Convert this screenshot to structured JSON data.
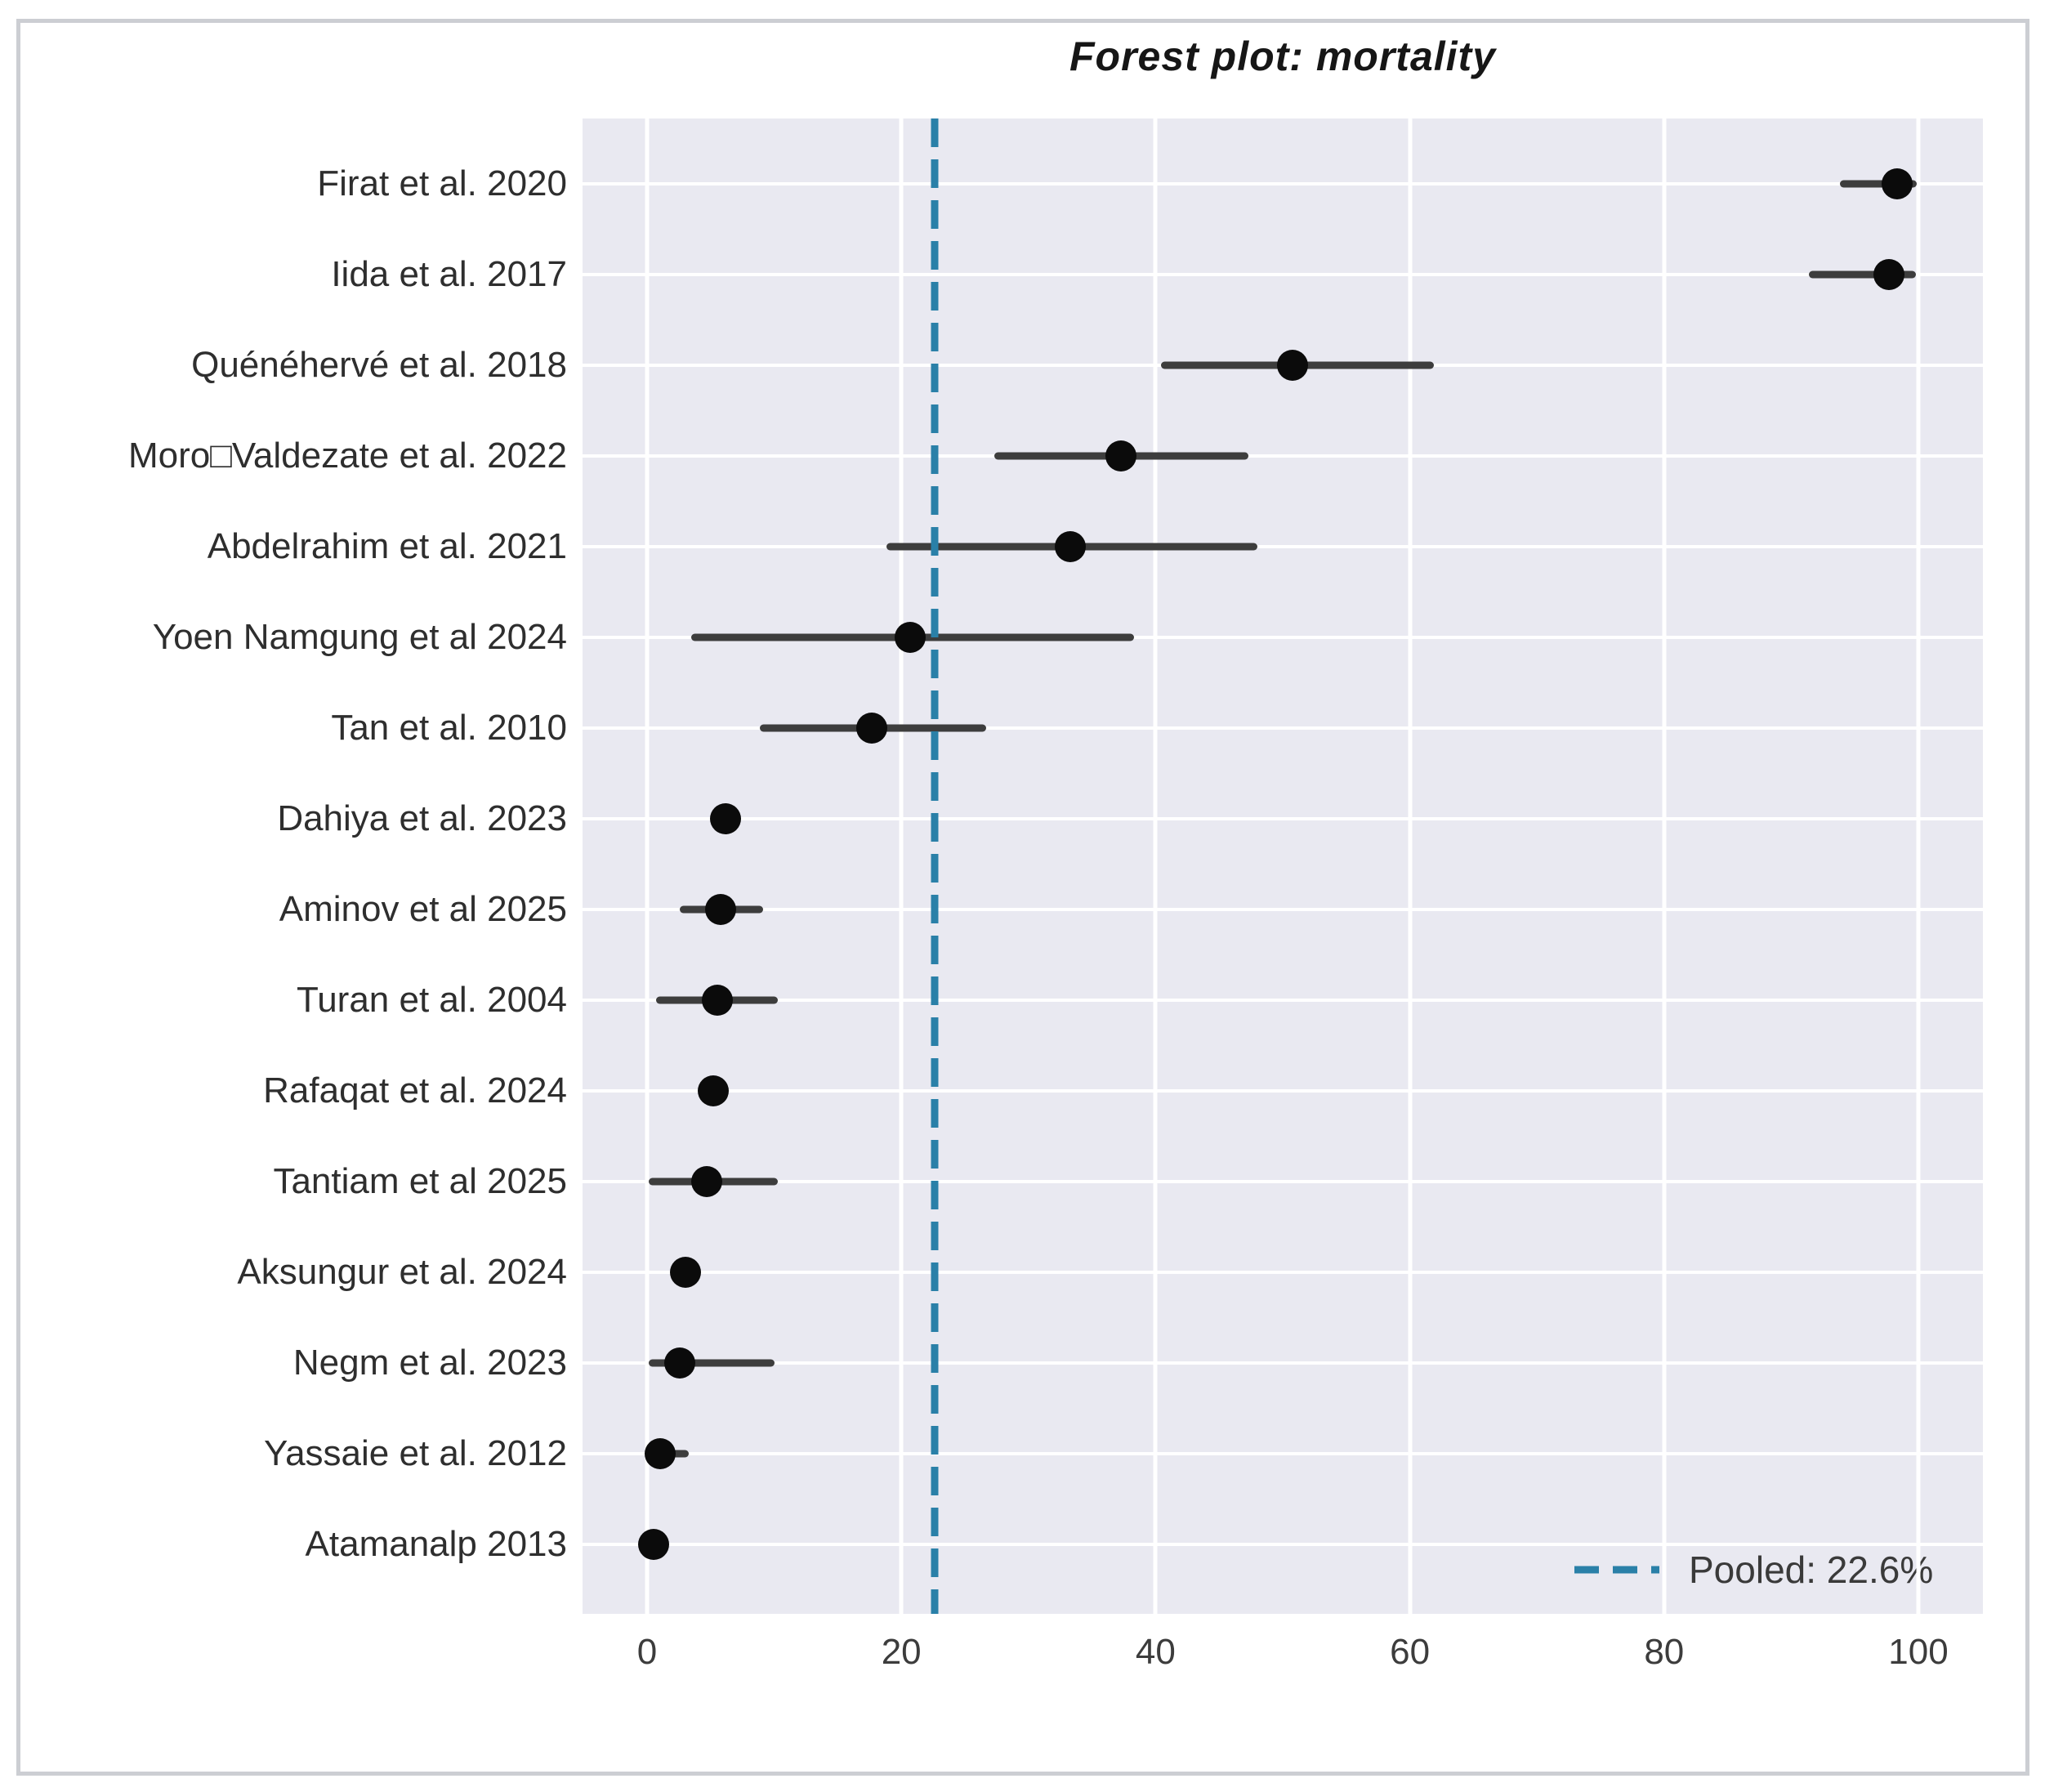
{
  "figure": {
    "title": "Forest plot: mortality",
    "legend_label": "Pooled: 22.6%",
    "colors": {
      "plot_bg": "#e9e9f1",
      "grid": "#ffffff",
      "point": "#0b0b0b",
      "ci_line": "#3d3d3d",
      "pooled_line": "#2a80a8",
      "frame_border": "#ccced3",
      "label_text": "#2e2e2e",
      "tick_text": "#3c3c3c"
    }
  },
  "chart_data": {
    "type": "scatter",
    "subtype": "forest-plot",
    "title": "Forest plot: mortality",
    "xlabel": "",
    "ylabel": "",
    "xlim": [
      -5,
      105
    ],
    "x_ticks": [
      0,
      20,
      40,
      60,
      80,
      100
    ],
    "grid": true,
    "legend_position": "lower right",
    "pooled": {
      "value": 22.6,
      "label": "Pooled: 22.6%",
      "style": "dashed-vertical-line"
    },
    "studies": [
      {
        "label": "Firat et al. 2020",
        "value": 98.3,
        "ci_low": 93.8,
        "ci_high": 99.9
      },
      {
        "label": "Iida et al. 2017",
        "value": 97.7,
        "ci_low": 91.4,
        "ci_high": 99.8
      },
      {
        "label": "Quénéhervé et al. 2018",
        "value": 50.8,
        "ci_low": 40.4,
        "ci_high": 61.9
      },
      {
        "label": "Moro□Valdezate et al. 2022",
        "value": 37.3,
        "ci_low": 27.3,
        "ci_high": 47.3
      },
      {
        "label": "Abdelrahim et al. 2021",
        "value": 33.3,
        "ci_low": 18.8,
        "ci_high": 48.0
      },
      {
        "label": "Yoen Namgung et al 2024",
        "value": 20.7,
        "ci_low": 3.5,
        "ci_high": 38.3
      },
      {
        "label": "Tan et al. 2010",
        "value": 17.7,
        "ci_low": 8.9,
        "ci_high": 26.7
      },
      {
        "label": "Dahiya et al. 2023",
        "value": 6.2,
        "ci_low": 6.2,
        "ci_high": 6.2
      },
      {
        "label": "Aminov et al 2025",
        "value": 5.8,
        "ci_low": 2.6,
        "ci_high": 9.1
      },
      {
        "label": "Turan et al. 2004",
        "value": 5.5,
        "ci_low": 0.7,
        "ci_high": 10.3
      },
      {
        "label": "Rafaqat et al. 2024",
        "value": 5.2,
        "ci_low": 5.2,
        "ci_high": 5.2
      },
      {
        "label": "Tantiam et al 2025",
        "value": 4.7,
        "ci_low": 0.1,
        "ci_high": 10.3
      },
      {
        "label": "Aksungur et al. 2024",
        "value": 3.0,
        "ci_low": 3.0,
        "ci_high": 3.0
      },
      {
        "label": "Negm et al. 2023",
        "value": 2.6,
        "ci_low": 0.1,
        "ci_high": 10.0
      },
      {
        "label": "Yassaie et al. 2012",
        "value": 1.0,
        "ci_low": 0.0,
        "ci_high": 3.3
      },
      {
        "label": "Atamanalp 2013",
        "value": 0.5,
        "ci_low": 0.5,
        "ci_high": 0.5
      }
    ]
  }
}
